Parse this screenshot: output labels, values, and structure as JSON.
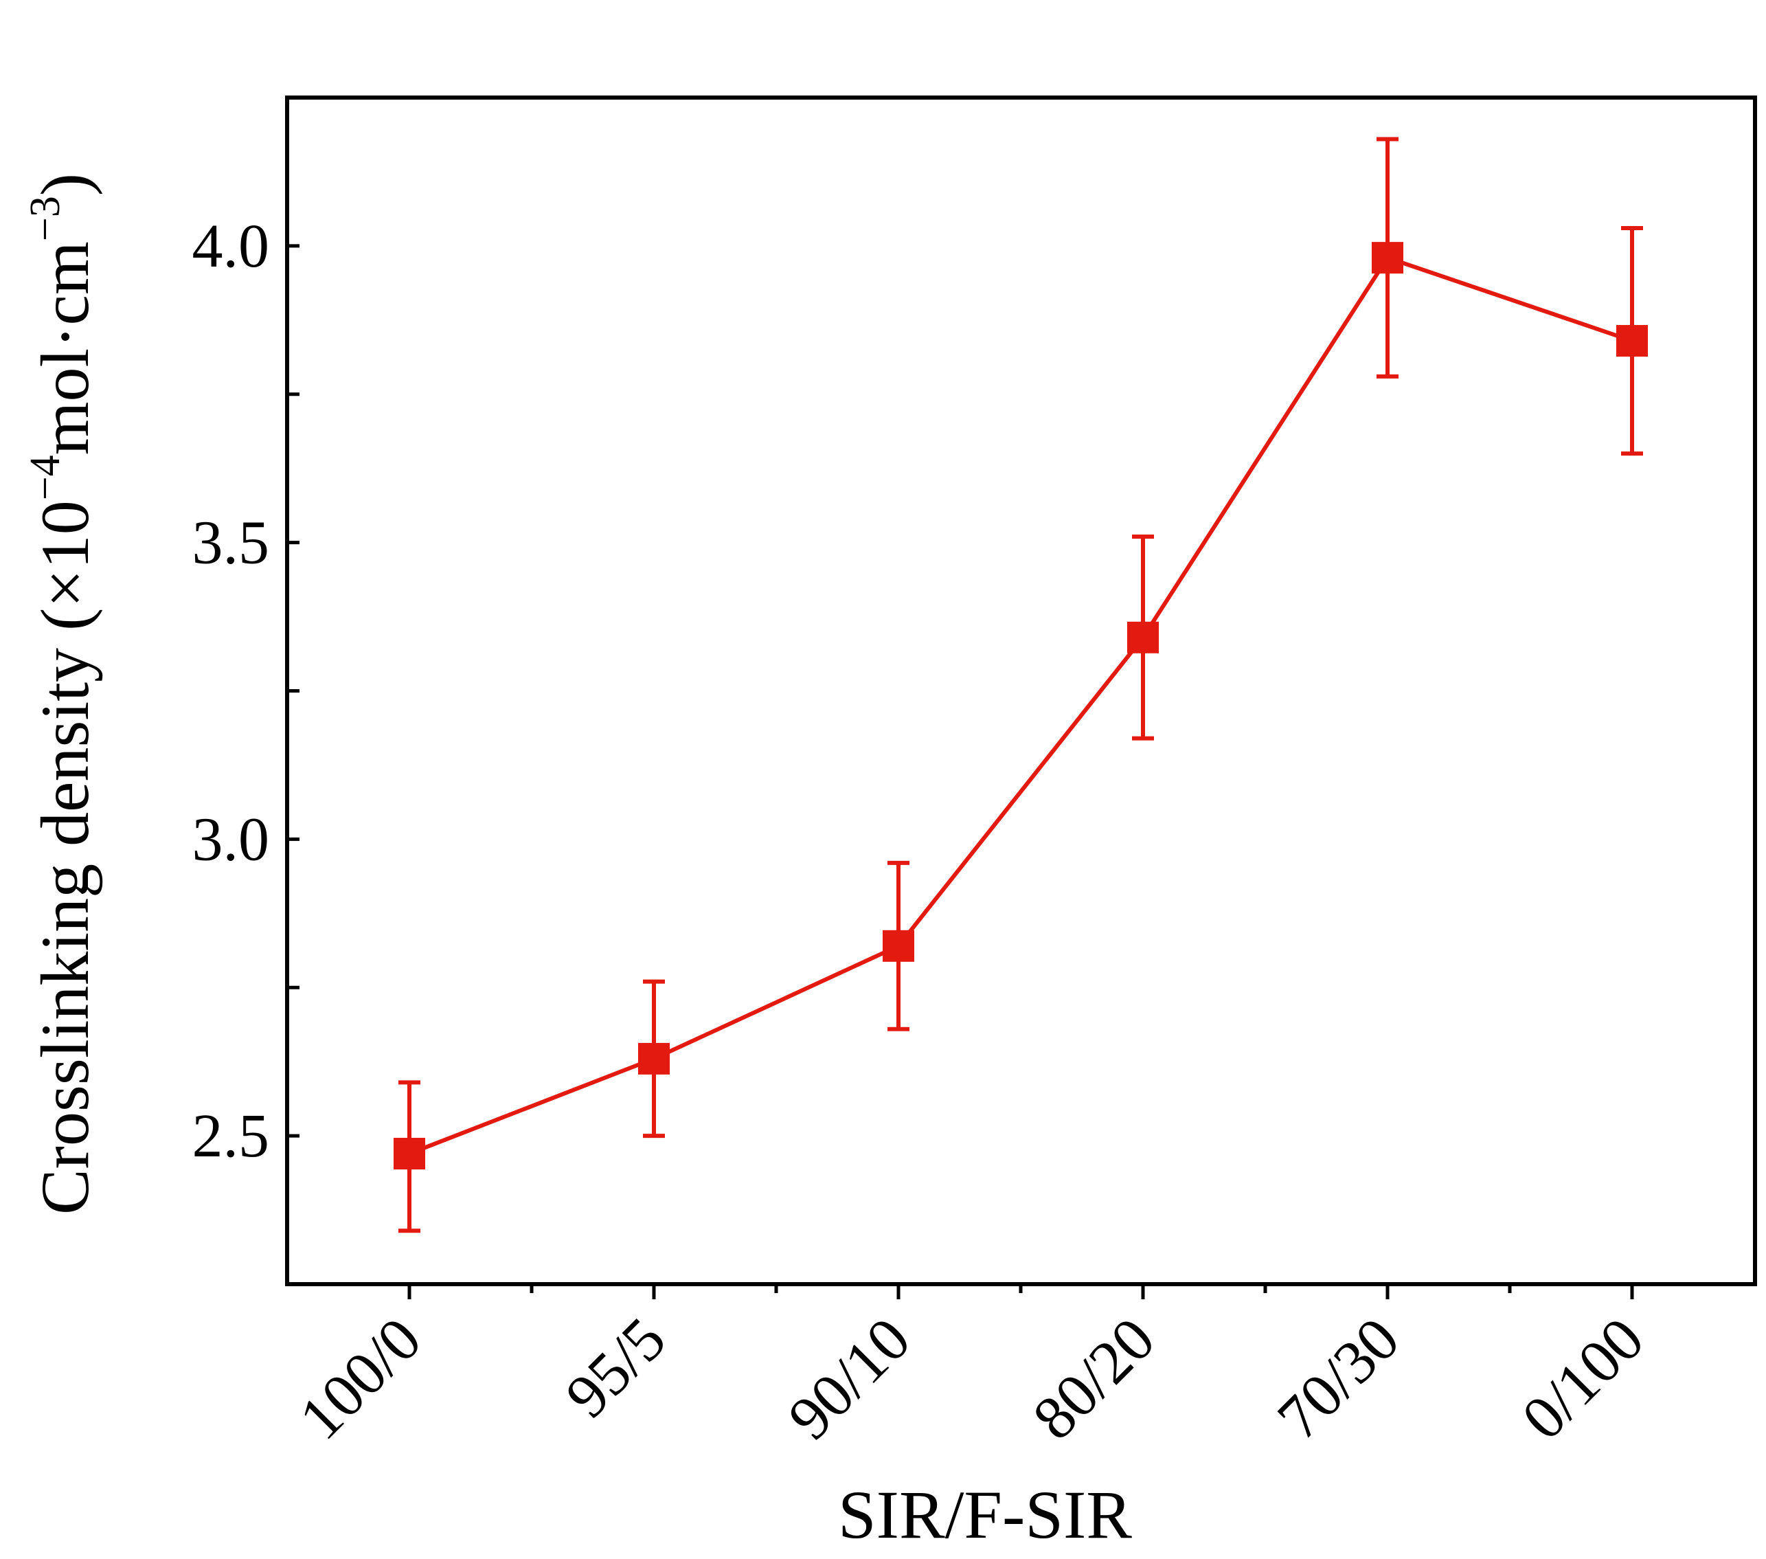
{
  "chart_data": {
    "type": "line",
    "title": "",
    "xlabel": "SIR/F-SIR",
    "ylabel_main": "Crosslinking density (×10",
    "ylabel_exp1": "−4",
    "ylabel_mid": "mol·cm",
    "ylabel_exp2": "−3",
    "ylabel_end": ")",
    "categories": [
      "100/0",
      "95/5",
      "90/10",
      "80/20",
      "70/30",
      "0/100"
    ],
    "series": [
      {
        "name": "Crosslinking density",
        "color": "#e31a10",
        "marker": "square",
        "values": [
          2.47,
          2.63,
          2.82,
          3.34,
          3.98,
          3.84
        ],
        "error_low": [
          0.13,
          0.13,
          0.14,
          0.17,
          0.2,
          0.19
        ],
        "error_high": [
          0.12,
          0.13,
          0.14,
          0.17,
          0.2,
          0.19
        ]
      }
    ],
    "ylim": [
      2.25,
      4.25
    ],
    "yticks": [
      "2.5",
      "3.0",
      "3.5",
      "4.0"
    ],
    "grid": false,
    "legend": "none"
  }
}
